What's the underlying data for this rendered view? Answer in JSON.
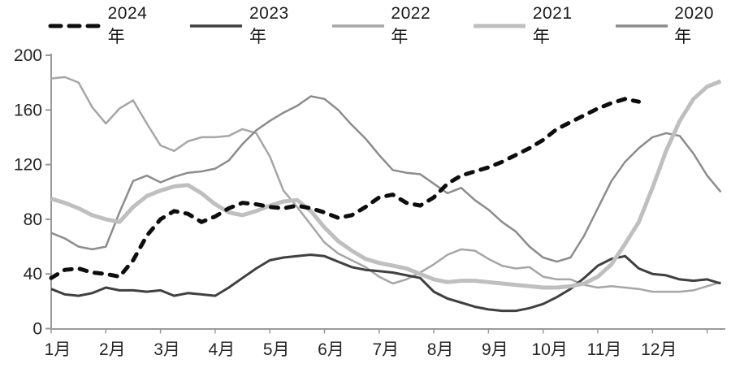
{
  "chart_data": {
    "type": "line",
    "title": "",
    "xlabel": "",
    "ylabel": "",
    "x_tick_labels": [
      "1月",
      "2月",
      "3月",
      "4月",
      "5月",
      "6月",
      "7月",
      "8月",
      "9月",
      "10月",
      "11月",
      "12月"
    ],
    "y_tick_labels": [
      "0",
      "40",
      "80",
      "120",
      "160",
      "200"
    ],
    "y_ticks": [
      0,
      40,
      80,
      120,
      160,
      200
    ],
    "ylim": [
      0,
      200
    ],
    "grid": false,
    "legend_position": "top",
    "x_unit": "weekly points across months 1月-12月 (4 per month, 50 points)",
    "series": [
      {
        "name": "2024年",
        "color": "#0d0d0d",
        "style": "dashed",
        "width": 5,
        "values": [
          37,
          43,
          44,
          41,
          40,
          38,
          50,
          68,
          80,
          86,
          84,
          78,
          82,
          88,
          92,
          91,
          89,
          88,
          90,
          88,
          85,
          81,
          83,
          89,
          96,
          98,
          92,
          90,
          96,
          106,
          112,
          115,
          118,
          122,
          127,
          132,
          138,
          146,
          151,
          156,
          161,
          165,
          168,
          166,
          null,
          null,
          null,
          null,
          null,
          null
        ]
      },
      {
        "name": "2023年",
        "color": "#404040",
        "style": "solid",
        "width": 3,
        "values": [
          29,
          25,
          24,
          26,
          30,
          28,
          28,
          27,
          28,
          24,
          26,
          25,
          24,
          30,
          37,
          44,
          50,
          52,
          53,
          54,
          53,
          49,
          45,
          43,
          42,
          41,
          39,
          37,
          27,
          22,
          19,
          16,
          14,
          13,
          13,
          15,
          18,
          23,
          29,
          37,
          46,
          51,
          53,
          44,
          40,
          39,
          36,
          35,
          36,
          33
        ]
      },
      {
        "name": "2022年",
        "color": "#a6a6a6",
        "style": "solid",
        "width": 2.5,
        "values": [
          183,
          184,
          180,
          162,
          150,
          161,
          167,
          150,
          134,
          130,
          137,
          140,
          140,
          141,
          146,
          143,
          126,
          101,
          89,
          76,
          63,
          55,
          50,
          45,
          38,
          33,
          36,
          41,
          47,
          54,
          58,
          57,
          51,
          46,
          44,
          45,
          38,
          36,
          36,
          32,
          30,
          31,
          30,
          29,
          27,
          27,
          27,
          28,
          31,
          34
        ]
      },
      {
        "name": "2021年",
        "color": "#bfbfbf",
        "style": "solid",
        "width": 5,
        "values": [
          95,
          92,
          88,
          83,
          80,
          78,
          89,
          97,
          101,
          104,
          105,
          99,
          91,
          85,
          83,
          86,
          90,
          93,
          94,
          86,
          74,
          64,
          57,
          51,
          48,
          46,
          44,
          40,
          36,
          34,
          35,
          35,
          34,
          33,
          32,
          31,
          30,
          30,
          31,
          33,
          38,
          47,
          62,
          78,
          103,
          130,
          152,
          168,
          177,
          181
        ]
      },
      {
        "name": "2020年",
        "color": "#8c8c8c",
        "style": "solid",
        "width": 2.5,
        "values": [
          70,
          66,
          60,
          58,
          60,
          85,
          108,
          112,
          107,
          111,
          114,
          115,
          117,
          123,
          135,
          145,
          152,
          158,
          163,
          170,
          168,
          160,
          149,
          139,
          127,
          116,
          114,
          113,
          106,
          99,
          103,
          94,
          87,
          78,
          71,
          60,
          52,
          49,
          52,
          68,
          88,
          108,
          122,
          132,
          140,
          143,
          141,
          128,
          112,
          100
        ]
      }
    ]
  },
  "legend": {
    "items": [
      "2024年",
      "2023年",
      "2022年",
      "2021年",
      "2020年"
    ]
  }
}
